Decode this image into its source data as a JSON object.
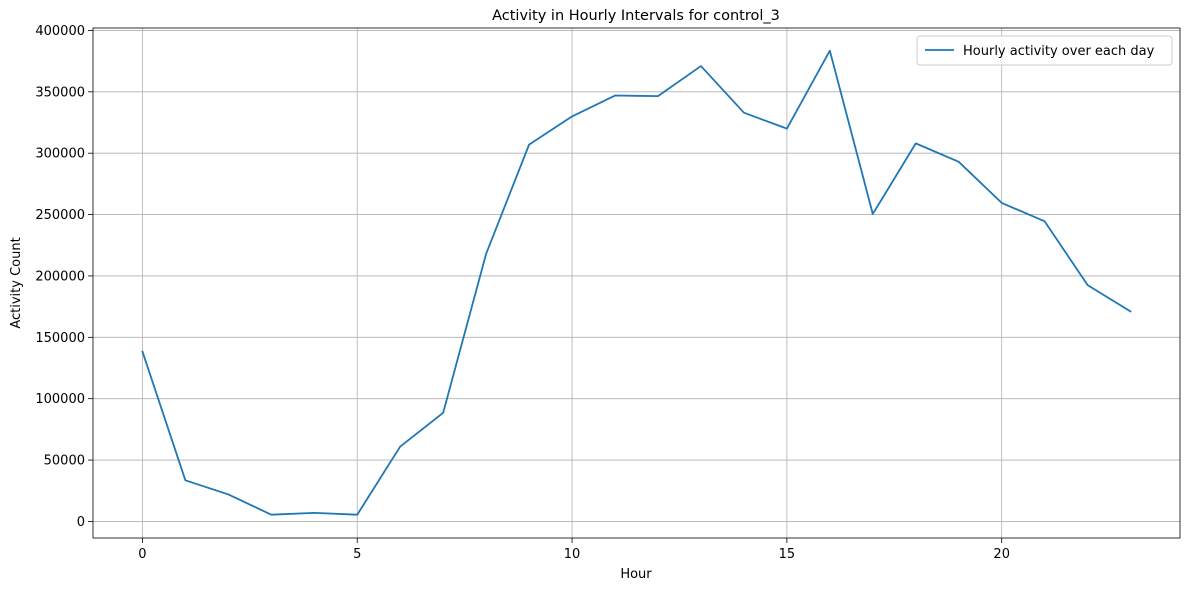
{
  "chart_data": {
    "type": "line",
    "title": "Activity in Hourly Intervals for control_3",
    "xlabel": "Hour",
    "ylabel": "Activity Count",
    "xlim": [
      -1.15,
      24.15
    ],
    "ylim": [
      -13500,
      402000
    ],
    "xticks": [
      0,
      5,
      10,
      15,
      20
    ],
    "yticks": [
      0,
      50000,
      100000,
      150000,
      200000,
      250000,
      300000,
      350000,
      400000
    ],
    "grid": true,
    "legend_position": "top-right",
    "series": [
      {
        "name": "Hourly activity over each day",
        "color": "#1f77b4",
        "x": [
          0,
          1,
          2,
          3,
          4,
          5,
          6,
          7,
          8,
          9,
          10,
          11,
          12,
          13,
          14,
          15,
          16,
          17,
          18,
          19,
          20,
          21,
          22,
          23
        ],
        "values": [
          138500,
          33500,
          22000,
          5500,
          7000,
          5500,
          61000,
          88500,
          218000,
          307000,
          330000,
          347000,
          346500,
          371000,
          333000,
          320000,
          383500,
          250500,
          308000,
          293000,
          259500,
          244500,
          192500,
          171000
        ]
      }
    ]
  }
}
